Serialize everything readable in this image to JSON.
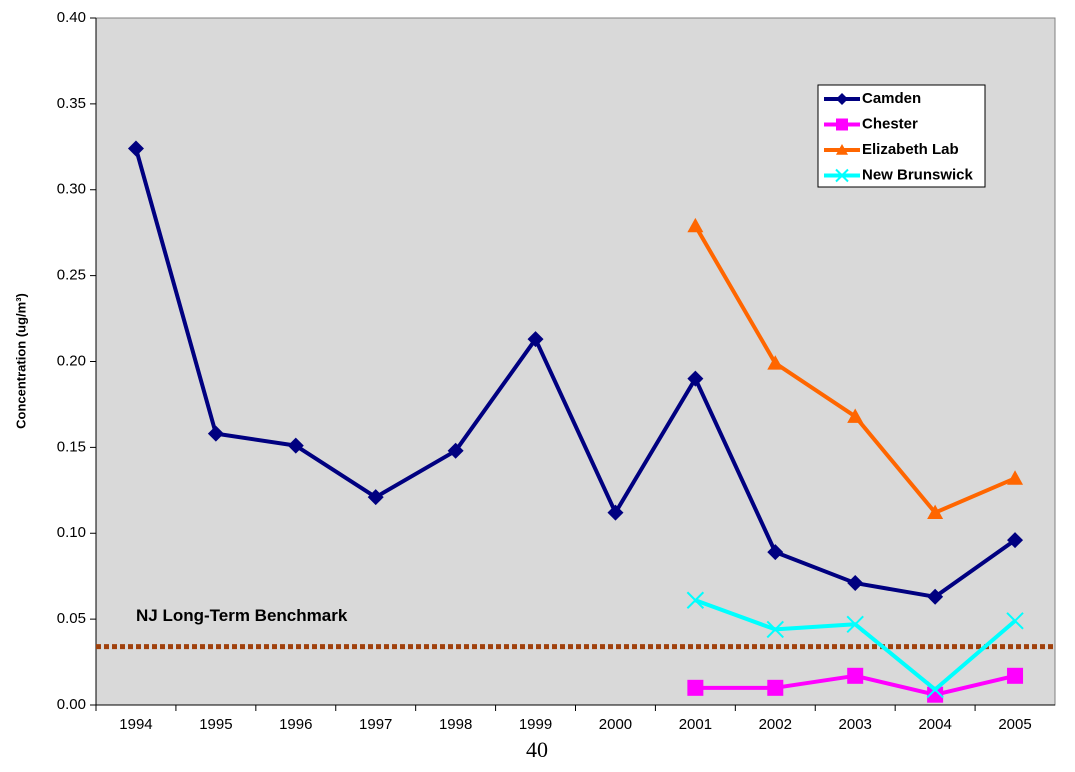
{
  "chart_data": {
    "type": "line",
    "y_label": "Concentration (ug/m³)",
    "categories": [
      "1994",
      "1995",
      "1996",
      "1997",
      "1998",
      "1999",
      "2000",
      "2001",
      "2002",
      "2003",
      "2004",
      "2005"
    ],
    "series": [
      {
        "name": "Camden",
        "color": "#000080",
        "marker": "diamond",
        "values": [
          0.324,
          0.158,
          0.151,
          0.121,
          0.148,
          0.213,
          0.112,
          0.19,
          0.089,
          0.071,
          0.063,
          0.096
        ]
      },
      {
        "name": "Chester",
        "color": "#ff00ff",
        "marker": "square",
        "values": [
          null,
          null,
          null,
          null,
          null,
          null,
          null,
          0.01,
          0.01,
          0.017,
          0.006,
          0.017
        ]
      },
      {
        "name": "Elizabeth Lab",
        "color": "#ff6600",
        "marker": "triangle",
        "values": [
          null,
          null,
          null,
          null,
          null,
          null,
          null,
          0.279,
          0.199,
          0.168,
          0.112,
          0.132
        ]
      },
      {
        "name": "New Brunswick",
        "color": "#00ffff",
        "marker": "x",
        "values": [
          null,
          null,
          null,
          null,
          null,
          null,
          null,
          0.061,
          0.044,
          0.047,
          0.009,
          0.049
        ]
      }
    ],
    "benchmark": {
      "label": "NJ Long-Term Benchmark",
      "value": 0.034,
      "color": "#a0410d"
    },
    "ylim": [
      0,
      0.4
    ],
    "yticks": [
      {
        "value": 0,
        "label": "0.00"
      },
      {
        "value": 0.05,
        "label": "0.05"
      },
      {
        "value": 0.1,
        "label": "0.10"
      },
      {
        "value": 0.15,
        "label": "0.15"
      },
      {
        "value": 0.2,
        "label": "0.20"
      },
      {
        "value": 0.25,
        "label": "0.25"
      },
      {
        "value": 0.3,
        "label": "0.30"
      },
      {
        "value": 0.35,
        "label": "0.35"
      },
      {
        "value": 0.4,
        "label": "0.40"
      }
    ],
    "legend": "top-right",
    "background": "#d9d9d9"
  },
  "page_number": "40"
}
